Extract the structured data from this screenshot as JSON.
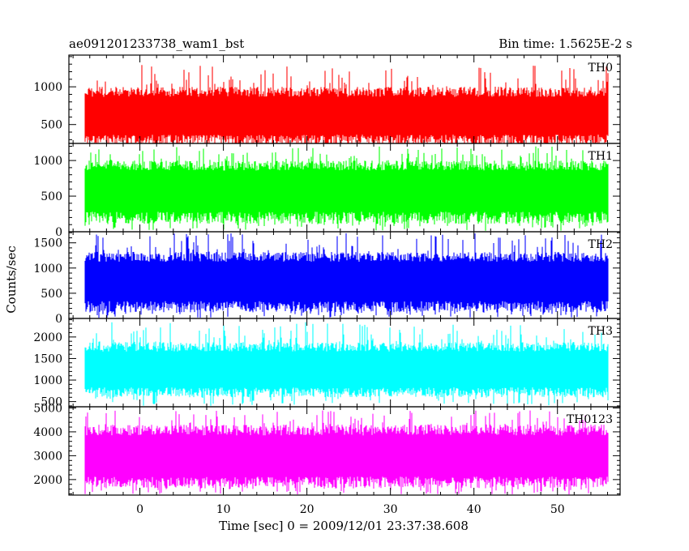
{
  "header": {
    "left_title": "ae091201233738_wam1_bst",
    "right_title": "Bin time: 1.5625E-2 s"
  },
  "chart_data": {
    "type": "line",
    "xlabel": "Time [sec] 0 = 2009/12/01 23:37:38.608",
    "ylabel": "Counts/sec",
    "xlim": [
      -8.5,
      57.5
    ],
    "x_ticks": [
      0,
      10,
      20,
      30,
      40,
      50
    ],
    "data_x_range": [
      -6.6,
      56
    ],
    "bin_time_s": 0.015625,
    "series": [
      {
        "name": "TH0",
        "color": "#ff0000",
        "ylim": [
          250,
          1420
        ],
        "y_ticks": [
          500,
          1000
        ],
        "typical_low": 230,
        "typical_high": 1000,
        "spike_max": 1290,
        "mean": 620
      },
      {
        "name": "TH1",
        "color": "#00ff00",
        "ylim": [
          0,
          1240
        ],
        "y_ticks": [
          0,
          500,
          1000
        ],
        "typical_low": 110,
        "typical_high": 1000,
        "spike_max": 1200,
        "mean": 600
      },
      {
        "name": "TH2",
        "color": "#0000ff",
        "ylim": [
          0,
          1720
        ],
        "y_ticks": [
          0,
          500,
          1000,
          1500
        ],
        "typical_low": 120,
        "typical_high": 1320,
        "spike_max": 1700,
        "mean": 760
      },
      {
        "name": "TH3",
        "color": "#00ffff",
        "ylim": [
          380,
          2430
        ],
        "y_ticks": [
          500,
          1000,
          1500,
          2000
        ],
        "typical_low": 600,
        "typical_high": 1880,
        "spike_max": 2350,
        "mean": 1260
      },
      {
        "name": "TH0123",
        "color": "#ff00ff",
        "ylim": [
          1350,
          5050
        ],
        "y_ticks": [
          2000,
          3000,
          4000,
          5000
        ],
        "typical_low": 1650,
        "typical_high": 4300,
        "spike_max": 4900,
        "mean": 3000
      }
    ]
  }
}
